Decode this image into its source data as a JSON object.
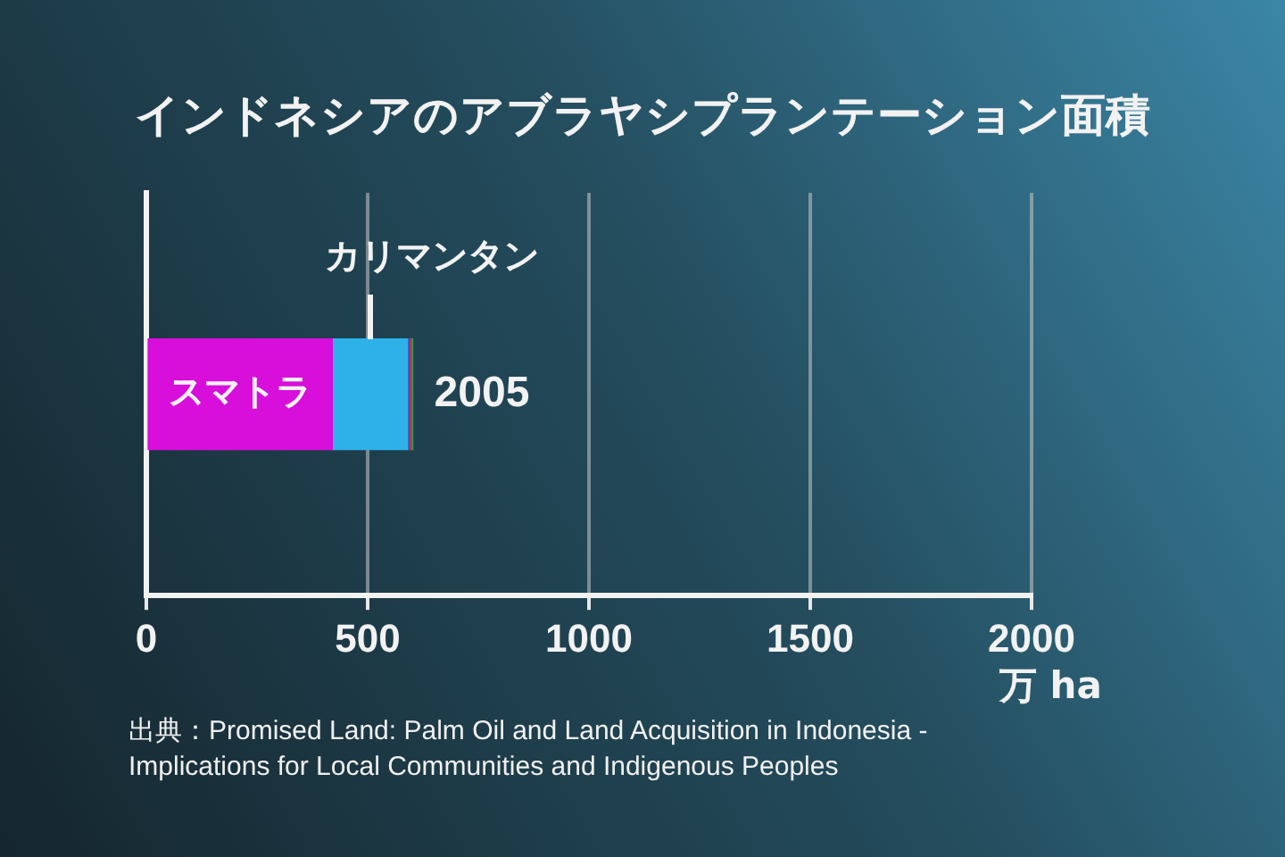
{
  "chart_data": {
    "type": "bar",
    "orientation": "horizontal",
    "stacked": true,
    "title": "インドネシアのアブラヤシプランテーション面積",
    "xlabel": "万 ha",
    "categories": [
      "2005"
    ],
    "series": [
      {
        "name": "スマトラ",
        "color": "#d80edb",
        "values": [
          420
        ]
      },
      {
        "name": "カリマンタン",
        "color": "#2db1e8",
        "values": [
          170
        ]
      },
      {
        "color": "#2a5cb0",
        "values": [
          4
        ]
      },
      {
        "color": "#e0204a",
        "values": [
          4
        ]
      },
      {
        "color": "#22a050",
        "values": [
          4
        ]
      }
    ],
    "xlim": [
      0,
      2000
    ],
    "xticks": [
      0,
      500,
      1000,
      1500,
      2000
    ],
    "grid": "x",
    "legend": false,
    "annotations": [
      "出典：Promised Land: Palm Oil and Land Acquisition in Indonesia - Implications for Local Communities and Indigenous Peoples"
    ]
  }
}
